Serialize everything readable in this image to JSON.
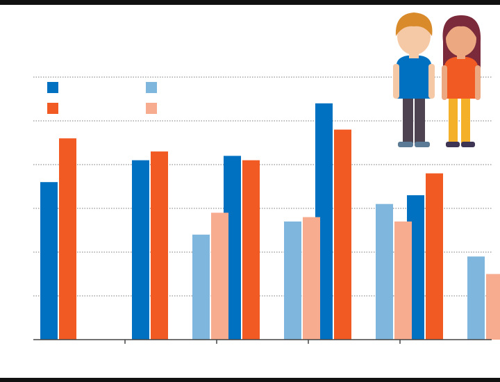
{
  "colors": {
    "series_dark_blue": "#0070c0",
    "series_dark_orange": "#f25a24",
    "series_light_blue": "#7fb6dd",
    "series_light_orange": "#f7ab8f",
    "gridline": "#777777",
    "rule": "#111111"
  },
  "legend_icon": "boy-and-girl-illustration",
  "chart_data": {
    "type": "bar",
    "title": "",
    "xlabel": "",
    "ylabel": "",
    "ylim": [
      0,
      6
    ],
    "grid": true,
    "legend": "top-left",
    "groups": 5,
    "series": [
      {
        "color": "#0070c0",
        "values": [
          3.6,
          4.1,
          4.2,
          5.4,
          3.3
        ]
      },
      {
        "color": "#f25a24",
        "values": [
          4.6,
          4.3,
          4.1,
          4.8,
          3.8
        ]
      },
      {
        "color": "#7fb6dd",
        "values": [
          null,
          2.4,
          2.7,
          3.1,
          1.9
        ]
      },
      {
        "color": "#f7ab8f",
        "values": [
          null,
          2.9,
          2.8,
          2.7,
          1.5
        ]
      }
    ]
  }
}
